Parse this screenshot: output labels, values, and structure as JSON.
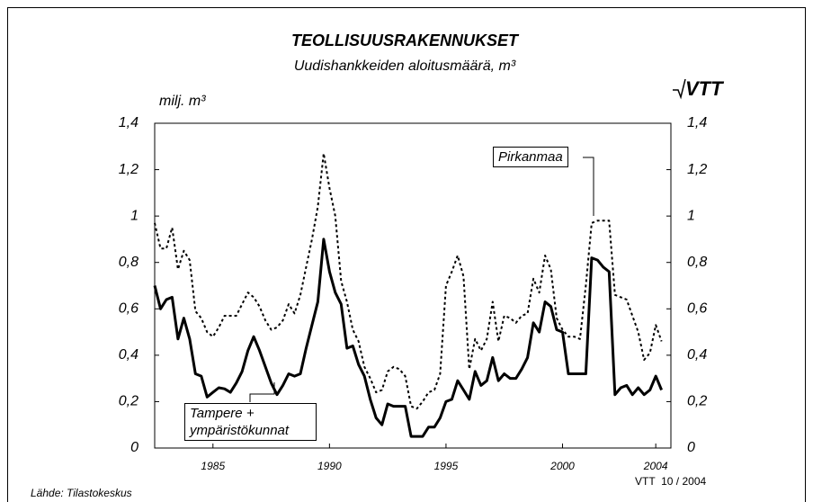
{
  "chart_data": {
    "type": "line",
    "title": "TEOLLISUUSRAKENNUKSET",
    "subtitle": "Uudishankkeiden aloitusmäärä, m³",
    "y_label": "milj. m³",
    "logo": "VTT",
    "source": "Lähde: Tilastokeskus",
    "footer": "VTT  10 / 2004",
    "x": [
      1982.5,
      1982.75,
      1983,
      1983.25,
      1983.5,
      1983.75,
      1984,
      1984.25,
      1984.5,
      1984.75,
      1985,
      1985.25,
      1985.5,
      1985.75,
      1986,
      1986.25,
      1986.5,
      1986.75,
      1987,
      1987.25,
      1987.5,
      1987.75,
      1988,
      1988.25,
      1988.5,
      1988.75,
      1989,
      1989.25,
      1989.5,
      1989.75,
      1990,
      1990.25,
      1990.5,
      1990.75,
      1991,
      1991.25,
      1991.5,
      1991.75,
      1992,
      1992.25,
      1992.5,
      1992.75,
      1993,
      1993.25,
      1993.5,
      1993.75,
      1994,
      1994.25,
      1994.5,
      1994.75,
      1995,
      1995.25,
      1995.5,
      1995.75,
      1996,
      1996.25,
      1996.5,
      1996.75,
      1997,
      1997.25,
      1997.5,
      1997.75,
      1998,
      1998.25,
      1998.5,
      1998.75,
      1999,
      1999.25,
      1999.5,
      1999.75,
      2000,
      2000.25,
      2000.5,
      2000.75,
      2001,
      2001.25,
      2001.5,
      2001.75,
      2002,
      2002.25,
      2002.5,
      2002.75,
      2003,
      2003.25,
      2003.5,
      2003.75,
      2004,
      2004.25
    ],
    "series": [
      {
        "name": "Tampere + ympäristökunnat",
        "color": "#000000",
        "dash": "solid",
        "values": [
          0.7,
          0.6,
          0.64,
          0.65,
          0.47,
          0.56,
          0.47,
          0.32,
          0.31,
          0.22,
          0.24,
          0.26,
          0.255,
          0.24,
          0.28,
          0.33,
          0.42,
          0.48,
          0.42,
          0.35,
          0.28,
          0.23,
          0.27,
          0.32,
          0.31,
          0.32,
          0.43,
          0.53,
          0.63,
          0.9,
          0.76,
          0.67,
          0.62,
          0.43,
          0.44,
          0.36,
          0.31,
          0.21,
          0.13,
          0.1,
          0.19,
          0.18,
          0.18,
          0.18,
          0.05,
          0.05,
          0.05,
          0.09,
          0.09,
          0.13,
          0.2,
          0.21,
          0.29,
          0.25,
          0.21,
          0.33,
          0.27,
          0.29,
          0.39,
          0.29,
          0.32,
          0.3,
          0.3,
          0.34,
          0.39,
          0.54,
          0.5,
          0.63,
          0.61,
          0.51,
          0.5,
          0.32,
          0.32,
          0.32,
          0.32,
          0.82,
          0.81,
          0.78,
          0.76,
          0.23,
          0.26,
          0.27,
          0.23,
          0.26,
          0.23,
          0.25,
          0.31,
          0.25
        ]
      },
      {
        "name": "Pirkanmaa",
        "color": "#000000",
        "dash": "dotted",
        "values": [
          0.97,
          0.86,
          0.86,
          0.95,
          0.77,
          0.85,
          0.81,
          0.59,
          0.56,
          0.5,
          0.48,
          0.52,
          0.57,
          0.57,
          0.57,
          0.62,
          0.67,
          0.65,
          0.61,
          0.55,
          0.51,
          0.52,
          0.55,
          0.62,
          0.58,
          0.66,
          0.78,
          0.9,
          1.04,
          1.27,
          1.12,
          1.0,
          0.72,
          0.63,
          0.51,
          0.46,
          0.35,
          0.3,
          0.24,
          0.25,
          0.33,
          0.35,
          0.34,
          0.31,
          0.18,
          0.17,
          0.2,
          0.24,
          0.25,
          0.32,
          0.7,
          0.76,
          0.83,
          0.74,
          0.34,
          0.47,
          0.42,
          0.47,
          0.63,
          0.46,
          0.57,
          0.56,
          0.54,
          0.57,
          0.58,
          0.73,
          0.67,
          0.83,
          0.77,
          0.56,
          0.51,
          0.48,
          0.48,
          0.47,
          0.7,
          0.97,
          0.98,
          0.98,
          0.98,
          0.66,
          0.65,
          0.64,
          0.57,
          0.5,
          0.38,
          0.41,
          0.53,
          0.46
        ]
      }
    ],
    "xlim": [
      1982.5,
      2004.65
    ],
    "xticks": [
      1985,
      1990,
      1995,
      2000,
      2004
    ],
    "ylim": [
      0,
      1.4
    ],
    "yticks": [
      0,
      {
        "value": 0.2,
        "label": "0,2"
      },
      {
        "value": 0.4,
        "label": "0,4"
      },
      {
        "value": 0.6,
        "label": "0,6"
      },
      {
        "value": 0.8,
        "label": "0,8"
      },
      1,
      {
        "value": 1.2,
        "label": "1,2"
      },
      {
        "value": 1.4,
        "label": "1,4"
      }
    ],
    "y2lim": [
      0,
      1.4
    ],
    "y2ticks": [
      0,
      {
        "value": 0.2,
        "label": "0,2"
      },
      {
        "value": 0.4,
        "label": "0,4"
      },
      {
        "value": 0.6,
        "label": "0,6"
      },
      {
        "value": 0.8,
        "label": "0,8"
      },
      1,
      {
        "value": 1.2,
        "label": "1,2"
      },
      {
        "value": 1.4,
        "label": "1,4"
      }
    ],
    "grid": false
  }
}
